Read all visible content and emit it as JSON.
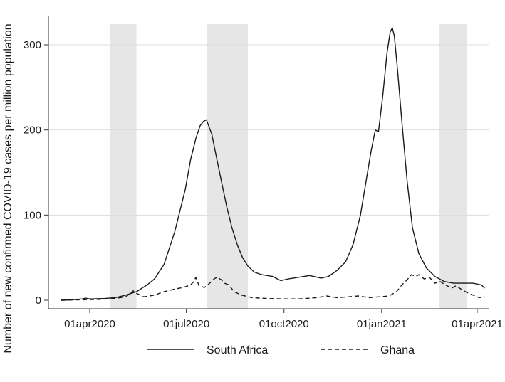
{
  "chart_data": {
    "type": "line",
    "title": "",
    "xlabel": "",
    "ylabel": "Number of new confirmed COVID-19 cases per million population",
    "ylim": [
      0,
      325
    ],
    "xlim": [
      "2020-03-01",
      "2021-04-12"
    ],
    "grid": true,
    "legend_position": "bottom",
    "x_ticks": [
      {
        "date": "2020-04-01",
        "label": "01apr2020"
      },
      {
        "date": "2020-07-01",
        "label": "01jul2020"
      },
      {
        "date": "2020-10-01",
        "label": "01oct2020"
      },
      {
        "date": "2021-01-01",
        "label": "01jan2021"
      },
      {
        "date": "2021-04-01",
        "label": "01apr2021"
      }
    ],
    "y_ticks": [
      0,
      100,
      200,
      300
    ],
    "shaded_periods": [
      {
        "start": "2020-04-20",
        "end": "2020-05-15"
      },
      {
        "start": "2020-07-20",
        "end": "2020-08-28"
      },
      {
        "start": "2021-02-24",
        "end": "2021-03-22"
      }
    ],
    "colors": {
      "series": "#1a1a1a",
      "shading": "#e6e6e6",
      "grid": "#dddddd",
      "axis": "#333333"
    },
    "series": [
      {
        "name": "South Africa",
        "line_style": "solid",
        "points": [
          [
            "2020-03-05",
            0
          ],
          [
            "2020-03-15",
            0.5
          ],
          [
            "2020-03-25",
            1.5
          ],
          [
            "2020-03-28",
            2.5
          ],
          [
            "2020-04-01",
            1.5
          ],
          [
            "2020-04-15",
            2
          ],
          [
            "2020-04-25",
            3
          ],
          [
            "2020-05-05",
            6
          ],
          [
            "2020-05-15",
            10
          ],
          [
            "2020-05-25",
            18
          ],
          [
            "2020-06-01",
            25
          ],
          [
            "2020-06-10",
            42
          ],
          [
            "2020-06-20",
            80
          ],
          [
            "2020-06-30",
            130
          ],
          [
            "2020-07-05",
            165
          ],
          [
            "2020-07-10",
            190
          ],
          [
            "2020-07-14",
            205
          ],
          [
            "2020-07-17",
            210
          ],
          [
            "2020-07-20",
            212
          ],
          [
            "2020-07-22",
            205
          ],
          [
            "2020-07-25",
            195
          ],
          [
            "2020-07-29",
            170
          ],
          [
            "2020-08-03",
            140
          ],
          [
            "2020-08-08",
            110
          ],
          [
            "2020-08-13",
            85
          ],
          [
            "2020-08-18",
            65
          ],
          [
            "2020-08-23",
            50
          ],
          [
            "2020-08-28",
            40
          ],
          [
            "2020-09-03",
            33
          ],
          [
            "2020-09-10",
            30
          ],
          [
            "2020-09-20",
            28
          ],
          [
            "2020-09-28",
            23
          ],
          [
            "2020-10-05",
            25
          ],
          [
            "2020-10-15",
            27
          ],
          [
            "2020-10-25",
            29
          ],
          [
            "2020-11-05",
            26
          ],
          [
            "2020-11-12",
            28
          ],
          [
            "2020-11-20",
            35
          ],
          [
            "2020-11-28",
            45
          ],
          [
            "2020-12-05",
            65
          ],
          [
            "2020-12-12",
            100
          ],
          [
            "2020-12-18",
            145
          ],
          [
            "2020-12-22",
            175
          ],
          [
            "2020-12-26",
            200
          ],
          [
            "2020-12-29",
            198
          ],
          [
            "2021-01-02",
            240
          ],
          [
            "2021-01-06",
            290
          ],
          [
            "2021-01-09",
            315
          ],
          [
            "2021-01-11",
            320
          ],
          [
            "2021-01-13",
            310
          ],
          [
            "2021-01-16",
            270
          ],
          [
            "2021-01-20",
            210
          ],
          [
            "2021-01-25",
            140
          ],
          [
            "2021-01-30",
            85
          ],
          [
            "2021-02-05",
            55
          ],
          [
            "2021-02-12",
            38
          ],
          [
            "2021-02-20",
            28
          ],
          [
            "2021-03-01",
            22
          ],
          [
            "2021-03-10",
            20
          ],
          [
            "2021-03-20",
            20
          ],
          [
            "2021-03-28",
            20
          ],
          [
            "2021-04-05",
            18
          ],
          [
            "2021-04-08",
            14
          ]
        ]
      },
      {
        "name": "Ghana",
        "line_style": "dashed",
        "points": [
          [
            "2020-03-05",
            0
          ],
          [
            "2020-03-25",
            0.5
          ],
          [
            "2020-04-10",
            1
          ],
          [
            "2020-04-25",
            2
          ],
          [
            "2020-05-05",
            4
          ],
          [
            "2020-05-12",
            11
          ],
          [
            "2020-05-15",
            8
          ],
          [
            "2020-05-22",
            4
          ],
          [
            "2020-06-01",
            6
          ],
          [
            "2020-06-10",
            10
          ],
          [
            "2020-06-20",
            13
          ],
          [
            "2020-06-28",
            15
          ],
          [
            "2020-07-05",
            18
          ],
          [
            "2020-07-08",
            22
          ],
          [
            "2020-07-10",
            27
          ],
          [
            "2020-07-13",
            17
          ],
          [
            "2020-07-18",
            15
          ],
          [
            "2020-07-23",
            20
          ],
          [
            "2020-07-27",
            25
          ],
          [
            "2020-07-30",
            27
          ],
          [
            "2020-08-03",
            24
          ],
          [
            "2020-08-06",
            20
          ],
          [
            "2020-08-10",
            18
          ],
          [
            "2020-08-15",
            10
          ],
          [
            "2020-08-22",
            6
          ],
          [
            "2020-09-01",
            3
          ],
          [
            "2020-09-15",
            2
          ],
          [
            "2020-10-01",
            1.5
          ],
          [
            "2020-10-15",
            1.5
          ],
          [
            "2020-11-01",
            3
          ],
          [
            "2020-11-10",
            5
          ],
          [
            "2020-11-20",
            3
          ],
          [
            "2020-12-01",
            4
          ],
          [
            "2020-12-10",
            5
          ],
          [
            "2020-12-20",
            3
          ],
          [
            "2020-12-30",
            4
          ],
          [
            "2021-01-08",
            5
          ],
          [
            "2021-01-15",
            10
          ],
          [
            "2021-01-20",
            18
          ],
          [
            "2021-01-25",
            24
          ],
          [
            "2021-01-29",
            30
          ],
          [
            "2021-02-02",
            28
          ],
          [
            "2021-02-05",
            30
          ],
          [
            "2021-02-10",
            25
          ],
          [
            "2021-02-15",
            27
          ],
          [
            "2021-02-20",
            20
          ],
          [
            "2021-02-25",
            22
          ],
          [
            "2021-03-02",
            18
          ],
          [
            "2021-03-08",
            14
          ],
          [
            "2021-03-12",
            17
          ],
          [
            "2021-03-18",
            12
          ],
          [
            "2021-03-24",
            8
          ],
          [
            "2021-03-30",
            5
          ],
          [
            "2021-04-03",
            3
          ],
          [
            "2021-04-08",
            4
          ]
        ]
      }
    ]
  }
}
